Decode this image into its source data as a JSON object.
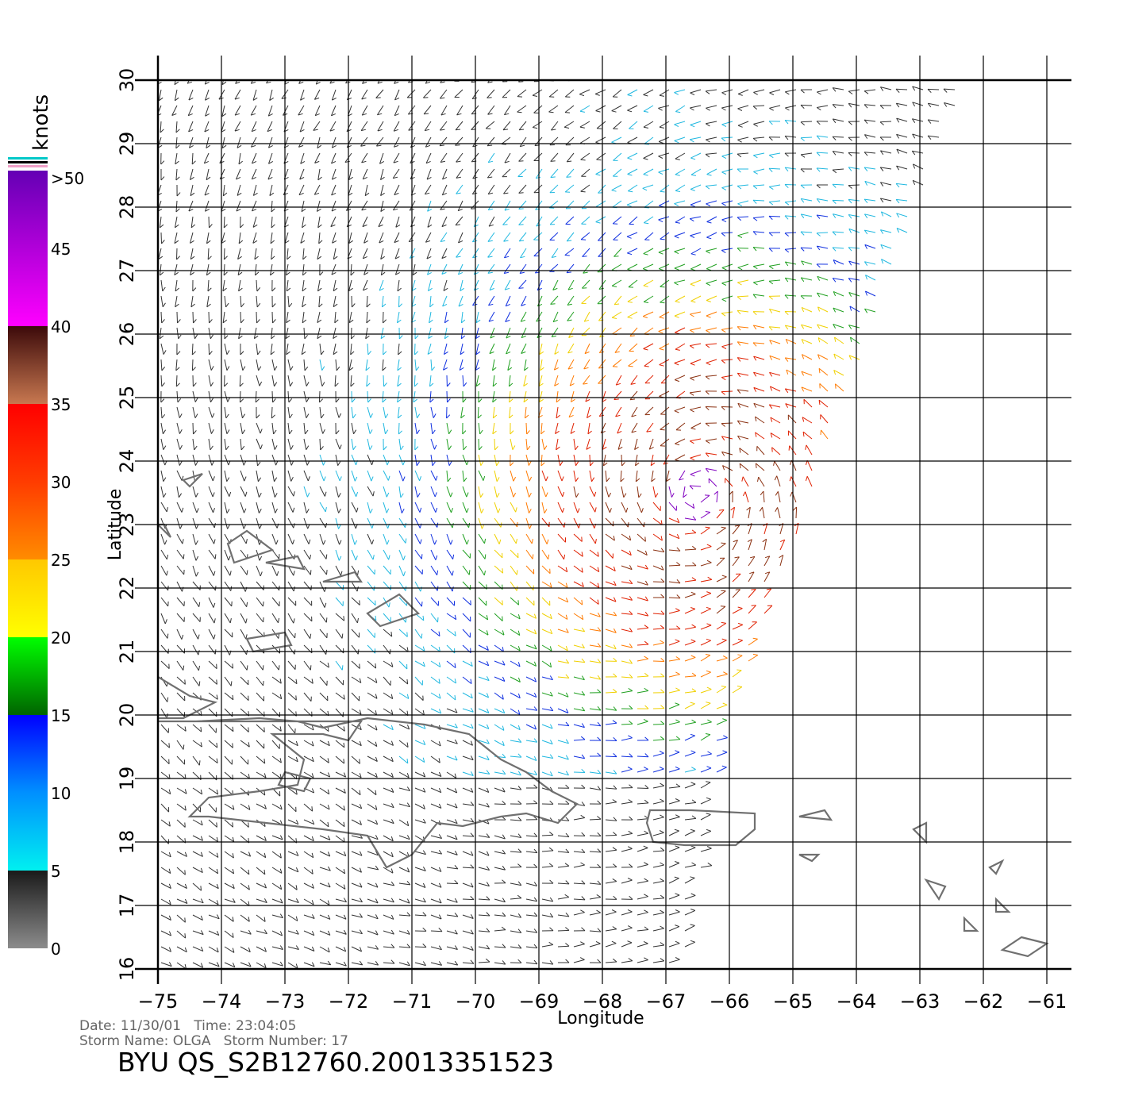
{
  "colorbar": {
    "unit": "knots",
    "tick_labels": [
      ">50",
      "45",
      "40",
      "35",
      "30",
      "25",
      "20",
      "15",
      "10",
      "5",
      "0"
    ],
    "bands": [
      {
        "from": 0,
        "to": 5,
        "colors": [
          "#8c8c8c",
          "#1a1a1a"
        ]
      },
      {
        "from": 5,
        "to": 10,
        "colors": [
          "#00f0f0",
          "#0090ff"
        ]
      },
      {
        "from": 10,
        "to": 15,
        "colors": [
          "#0090ff",
          "#0000ff"
        ]
      },
      {
        "from": 15,
        "to": 20,
        "colors": [
          "#006400",
          "#00ff00"
        ]
      },
      {
        "from": 20,
        "to": 25,
        "colors": [
          "#ffff00",
          "#ffc800"
        ]
      },
      {
        "from": 25,
        "to": 30,
        "colors": [
          "#ff8c00",
          "#ff3c00"
        ]
      },
      {
        "from": 30,
        "to": 35,
        "colors": [
          "#ff3c00",
          "#ff0000"
        ]
      },
      {
        "from": 35,
        "to": 40,
        "colors": [
          "#c87850",
          "#3c0a0a"
        ]
      },
      {
        "from": 40,
        "to": 50,
        "colors": [
          "#ff00ff",
          "#6400b4"
        ]
      }
    ]
  },
  "map": {
    "xlabel": "Longitude",
    "ylabel": "Latitude",
    "lon_range": [
      -75,
      -61
    ],
    "lat_range": [
      16,
      30
    ],
    "lon_ticks": [
      "−75",
      "−74",
      "−73",
      "−72",
      "−71",
      "−70",
      "−69",
      "−68",
      "−67",
      "−66",
      "−65",
      "−64",
      "−63",
      "−62",
      "−61"
    ],
    "lat_ticks": [
      "16",
      "17",
      "18",
      "19",
      "20",
      "21",
      "22",
      "23",
      "24",
      "25",
      "26",
      "27",
      "28",
      "29",
      "30"
    ],
    "storm_center": {
      "lon": -66.5,
      "lat": 23.5
    },
    "coast_color": "#707070",
    "grid_color": "#000000"
  },
  "footer": {
    "date_line": "Date: 11/30/01   Time: 23:04:05",
    "storm_line": "Storm Name: OLGA   Storm Number: 17",
    "product_id": "BYU QS_S2B12760.20013351523"
  }
}
